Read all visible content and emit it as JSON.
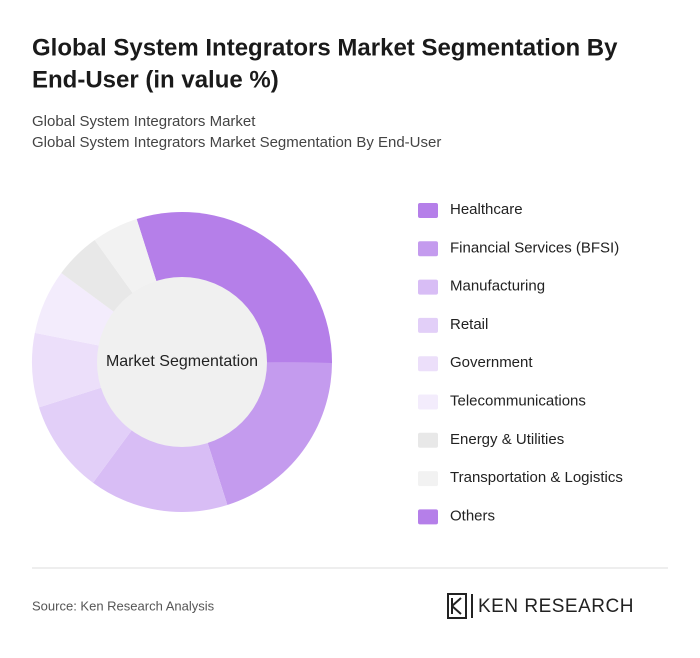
{
  "chart_data": {
    "type": "donut",
    "title": [
      "Global System Integrators Market Segmentation By",
      "End-User (in value %)"
    ],
    "subtitle": [
      "Global System Integrators Market",
      "Global System Integrators Market Segmentation By End-User"
    ],
    "center_label": "Market Segmentation",
    "categories": [
      "Healthcare",
      "Financial Services (BFSI)",
      "Manufacturing",
      "Retail",
      "Government",
      "Telecommunications",
      "Energy & Utilities",
      "Transportation & Logistics",
      "Others"
    ],
    "values": [
      30,
      20,
      15,
      10,
      8,
      7,
      5,
      5,
      0
    ],
    "colors": [
      "#b57fe9",
      "#c49bee",
      "#d8bdf5",
      "#e2cff8",
      "#ecdffa",
      "#f3ecfc",
      "#e8e8e8",
      "#f2f2f2",
      "#b57fe9"
    ],
    "source": "Source: Ken Research Analysis",
    "logo": "KEN RESEARCH"
  }
}
